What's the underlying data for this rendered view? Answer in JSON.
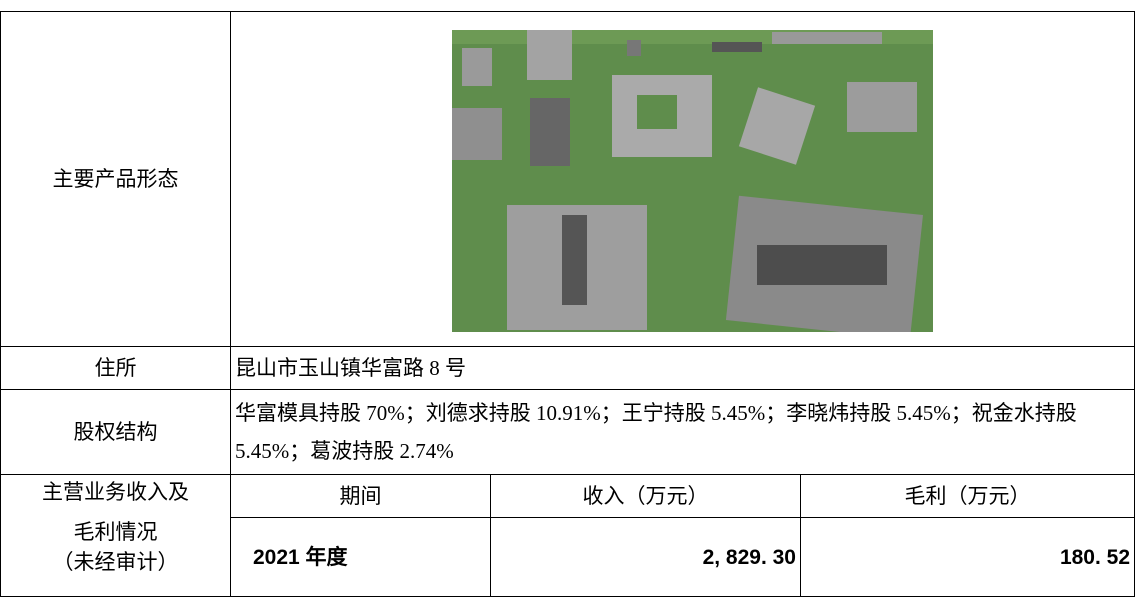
{
  "rows": [
    {
      "label": "主要产品形态"
    },
    {
      "label": "住所",
      "value": "昆山市玉山镇华富路 8 号"
    },
    {
      "label": "股权结构",
      "value": "华富模具持股 70%；刘德求持股 10.91%；王宁持股 5.45%；李晓炜持股 5.45%；祝金水持股 5.45%；葛波持股 2.74%"
    }
  ],
  "revenue": {
    "label_lines": [
      "主营业务收入及",
      "毛利情况",
      "（未经审计）"
    ],
    "headers": [
      "期间",
      "收入（万元）",
      "毛利（万元）"
    ],
    "rows": [
      [
        "2021 年度",
        "2, 829. 30",
        "180. 52"
      ]
    ]
  }
}
